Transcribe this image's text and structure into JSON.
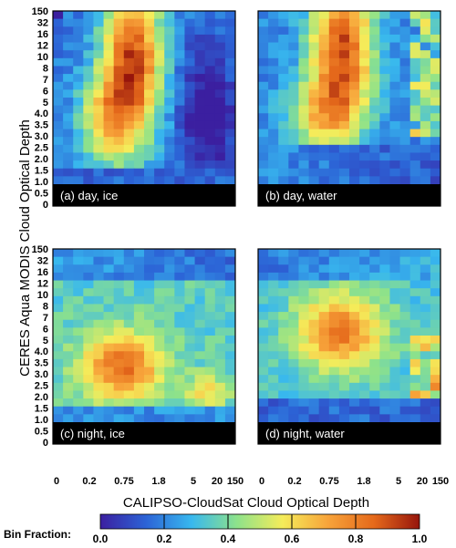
{
  "chart_data": {
    "type": "heatmap",
    "xlabel": "CALIPSO-CloudSat Cloud Optical Depth",
    "ylabel": "CERES Aqua MODIS Cloud Optical Depth",
    "x_tick_labels": [
      "0",
      "0.2",
      "0.75",
      "1.8",
      "5",
      "20",
      "150"
    ],
    "y_tick_labels": [
      "150",
      "32",
      "16",
      "12",
      "10",
      "8",
      "7",
      "6",
      "5",
      "4.0",
      "3.5",
      "3.0",
      "2.5",
      "2.0",
      "1.5",
      "1.0",
      "0.5",
      "0"
    ],
    "colorbar": {
      "label": "Bin Fraction:",
      "tick_labels": [
        "0.0",
        "0.2",
        "0.4",
        "0.6",
        "0.8",
        "1.0"
      ],
      "range": [
        0,
        1
      ],
      "colors": [
        "#3b1fa0",
        "#2c63d6",
        "#38b8ee",
        "#8ee28a",
        "#f5ec5a",
        "#f7a33a",
        "#e5691b",
        "#96150c"
      ]
    },
    "panels": [
      {
        "label": "(a) day, ice",
        "shape": "ice_day"
      },
      {
        "label": "(b) day, water",
        "shape": "water_day"
      },
      {
        "label": "(c) night, ice",
        "shape": "ice_night"
      },
      {
        "label": "(d) night, water",
        "shape": "water_night"
      }
    ]
  }
}
